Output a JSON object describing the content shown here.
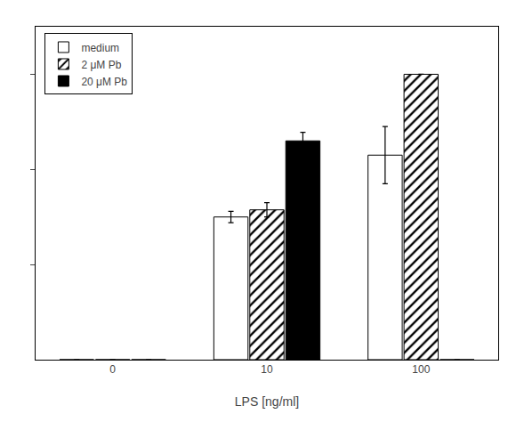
{
  "chart_data": {
    "type": "bar",
    "xlabel": "LPS [ng/ml]",
    "categories": [
      "0",
      "10",
      "100"
    ],
    "series": [
      {
        "name": "medium",
        "color": "white",
        "values": [
          0.0,
          30.0,
          43.0
        ],
        "errors": [
          0.0,
          1.2,
          6.0
        ]
      },
      {
        "name": "2 μM Pb",
        "color": "white",
        "marker": "hatch",
        "values": [
          0.0,
          31.5,
          60.0
        ],
        "errors": [
          0.0,
          1.5,
          0.0
        ]
      },
      {
        "name": "20 μM Pb",
        "color": "black",
        "values": [
          0.0,
          46.0,
          0.0
        ],
        "errors": [
          0.0,
          1.8,
          0.0
        ]
      }
    ],
    "ylim": [
      0,
      70
    ],
    "yticks": [
      20,
      40,
      60
    ],
    "grid": false,
    "legend": "upper left",
    "tick_labels": "x"
  }
}
